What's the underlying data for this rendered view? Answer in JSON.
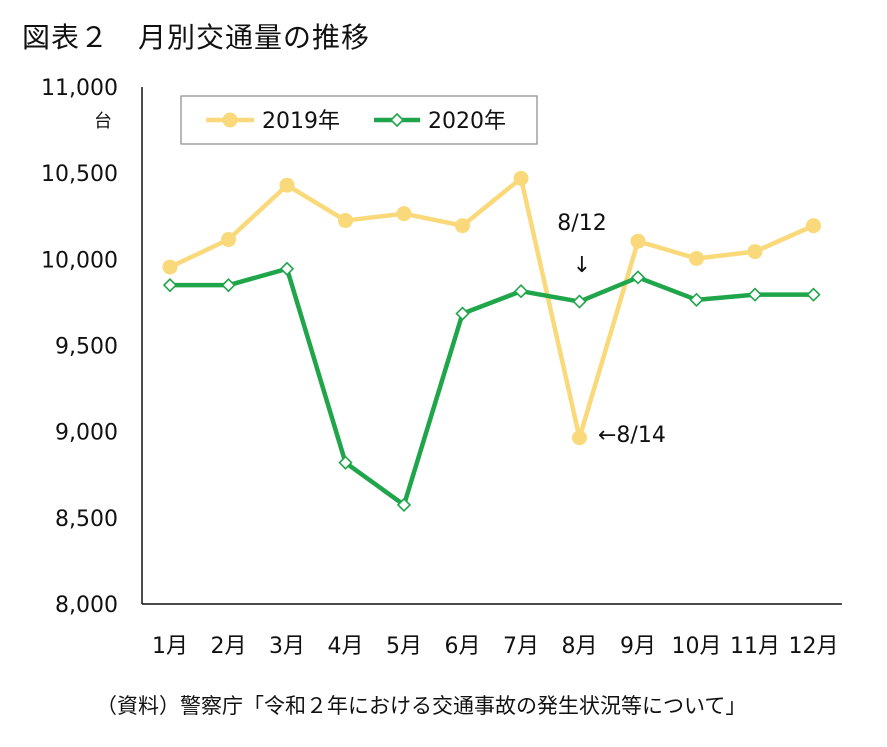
{
  "title": "図表２　月別交通量の推移",
  "source": "（資料）警察庁「令和２年における交通事故の発生状況等について」",
  "chart_data": {
    "type": "line",
    "title": "図表２　月別交通量の推移",
    "ylabel": "台",
    "xlabel": "",
    "categories": [
      "1月",
      "2月",
      "3月",
      "4月",
      "5月",
      "6月",
      "7月",
      "8月",
      "9月",
      "10月",
      "11月",
      "12月"
    ],
    "ylim": [
      8000,
      11000
    ],
    "yticks": [
      8000,
      8500,
      9000,
      9500,
      10000,
      10500,
      11000
    ],
    "ytick_labels": [
      "8,000",
      "8,500",
      "9,000",
      "9,500",
      "10,000",
      "10,500",
      "11,000"
    ],
    "grid": false,
    "legend_position": "top",
    "series": [
      {
        "name": "2019年",
        "color": "#FAD97A",
        "marker": "circle",
        "values": [
          9955,
          10115,
          10430,
          10225,
          10265,
          10195,
          10470,
          8965,
          10105,
          10005,
          10045,
          10195
        ]
      },
      {
        "name": "2020年",
        "color": "#1FA64A",
        "marker": "diamond-open",
        "values": [
          9850,
          9850,
          9945,
          8820,
          8575,
          9685,
          9815,
          9755,
          9895,
          9765,
          9795,
          9795
        ]
      }
    ],
    "annotations": [
      {
        "text": "8/12",
        "arrow": "↓"
      },
      {
        "text": "←8/14"
      }
    ]
  }
}
